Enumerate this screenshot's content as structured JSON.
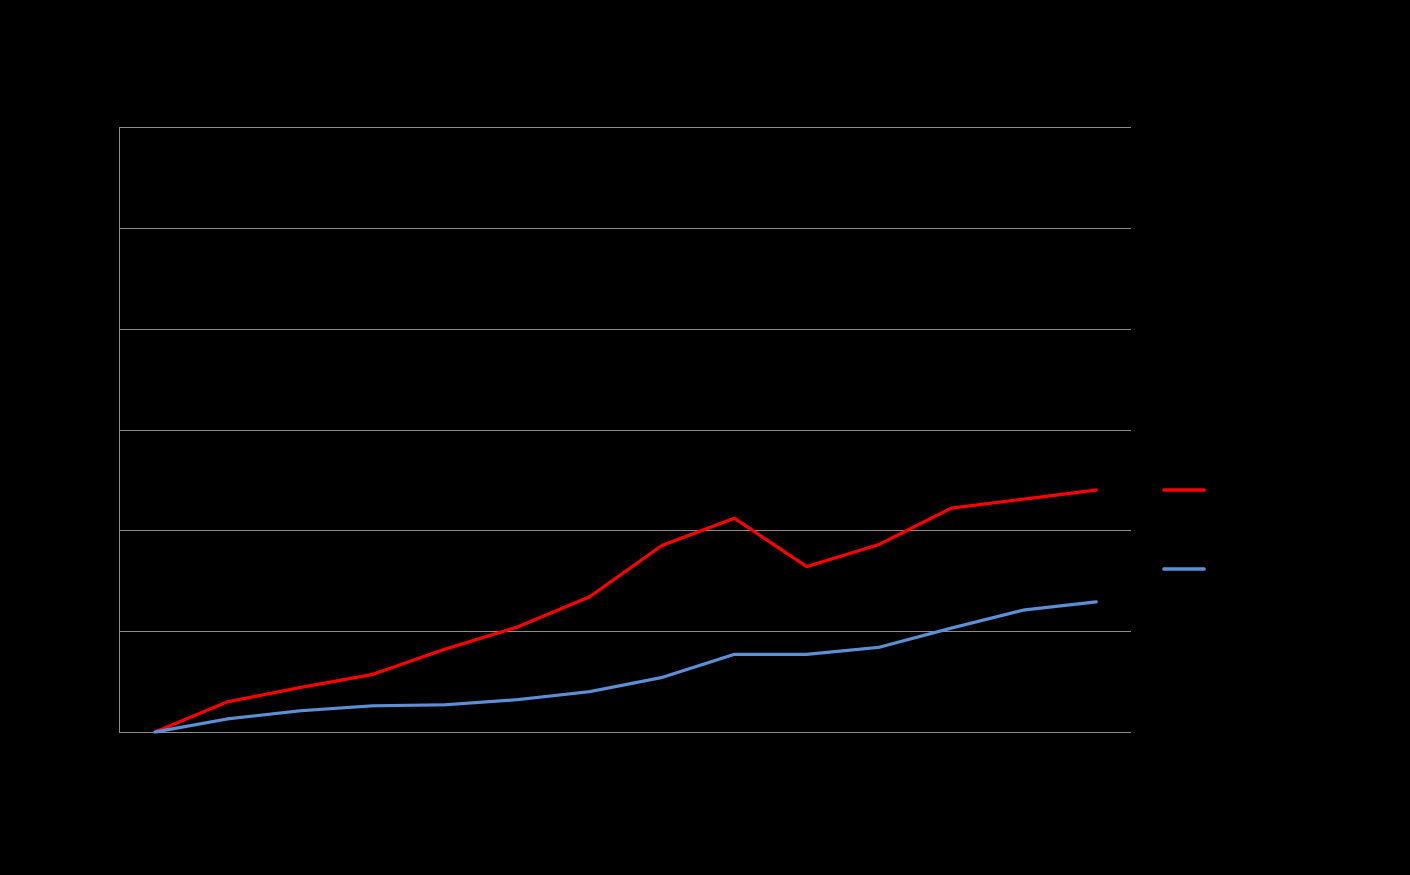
{
  "chart_data": {
    "type": "line",
    "title": "",
    "xlabel": "",
    "ylabel": "",
    "x": [
      1,
      2,
      3,
      4,
      5,
      6,
      7,
      8,
      9,
      10,
      11,
      12,
      13,
      14
    ],
    "ylim": [
      0,
      600
    ],
    "yticks": [
      0,
      100,
      200,
      300,
      400,
      500,
      600
    ],
    "grid": true,
    "legend_position": "right",
    "series": [
      {
        "color": "#ff0000",
        "values": [
          0,
          30,
          44,
          57,
          82,
          104,
          134,
          185,
          212,
          164,
          186,
          222,
          231,
          240
        ]
      },
      {
        "color": "#5b8fd6",
        "values": [
          0,
          13,
          21,
          26,
          27,
          32,
          40,
          54,
          77,
          77,
          84,
          103,
          121,
          129
        ]
      }
    ]
  }
}
